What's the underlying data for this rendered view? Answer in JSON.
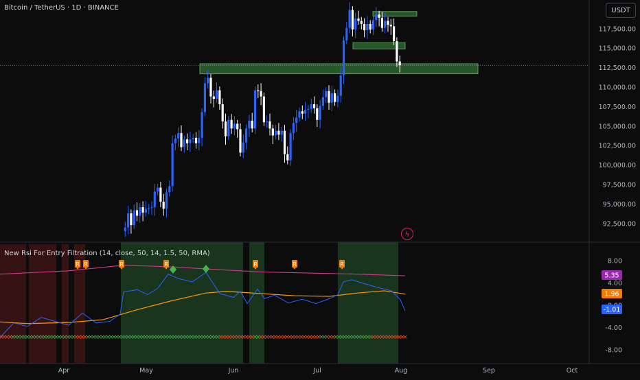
{
  "header": {
    "symbol_title": "Bitcoin / TetherUS · 1D · BINANCE",
    "currency": "USDT"
  },
  "indicator": {
    "title": "New Rsi For Entry Filtration (14, close, 50, 14, 1.5, 50, RMA)",
    "values": {
      "purple": "5.35",
      "orange": "1.96",
      "blue": "-1.01"
    },
    "colors": {
      "purple": "#9c27b0",
      "orange": "#f57c00",
      "blue": "#2962ff",
      "line_blue": "#2962ff",
      "line_orange": "#ff9800",
      "line_pink": "#d1368f"
    },
    "r_marker_label": "R",
    "axis_ticks": [
      "8.00",
      "4.00",
      "0.00",
      "-4.00",
      "-8.00"
    ]
  },
  "price_axis": {
    "ticks": [
      "117,500.00",
      "115,000.00",
      "112,500.00",
      "110,000.00",
      "107,500.00",
      "105,000.00",
      "102,500.00",
      "100,000.00",
      "97,500.00",
      "95,000.00",
      "92,500.00"
    ],
    "current_price_line": 112800
  },
  "time_axis": {
    "labels": [
      "Apr",
      "May",
      "Jun",
      "Jul",
      "Aug",
      "Sep",
      "Oct"
    ]
  },
  "colors": {
    "up_candle": "#2962ff",
    "down_candle": "#ffffff",
    "zone_fill": "#4caf50",
    "bull_bg": "#1b3a1f",
    "bear_bg": "#3a1414",
    "strip_green": "#4caf50",
    "strip_red": "#f4511e"
  },
  "chart_data": {
    "type": "candlestick",
    "symbol": "Bitcoin / TetherUS",
    "timeframe": "1D",
    "exchange": "BINANCE",
    "y_range": [
      90200,
      120300
    ],
    "x_months": [
      "Apr",
      "May",
      "Jun",
      "Jul",
      "Aug",
      "Sep",
      "Oct"
    ],
    "close_path": [
      [
        0,
        91500
      ],
      [
        1,
        92000
      ],
      [
        2,
        93800
      ],
      [
        3,
        92300
      ],
      [
        4,
        94200
      ],
      [
        5,
        93500
      ],
      [
        6,
        94600
      ],
      [
        7,
        93900
      ],
      [
        8,
        94400
      ],
      [
        9,
        94500
      ],
      [
        10,
        94600
      ],
      [
        11,
        96600
      ],
      [
        12,
        97100
      ],
      [
        13,
        95300
      ],
      [
        14,
        94400
      ],
      [
        15,
        96500
      ],
      [
        16,
        97300
      ],
      [
        17,
        102800
      ],
      [
        18,
        103400
      ],
      [
        19,
        104100
      ],
      [
        20,
        102300
      ],
      [
        21,
        103300
      ],
      [
        22,
        102800
      ],
      [
        23,
        103300
      ],
      [
        24,
        103500
      ],
      [
        25,
        102800
      ],
      [
        26,
        103500
      ],
      [
        27,
        106800
      ],
      [
        28,
        110500
      ],
      [
        29,
        111200
      ],
      [
        30,
        108800
      ],
      [
        31,
        108500
      ],
      [
        32,
        109600
      ],
      [
        33,
        107800
      ],
      [
        34,
        105600
      ],
      [
        35,
        103700
      ],
      [
        36,
        105800
      ],
      [
        37,
        104700
      ],
      [
        38,
        105300
      ],
      [
        39,
        104600
      ],
      [
        40,
        101600
      ],
      [
        41,
        102900
      ],
      [
        42,
        104700
      ],
      [
        43,
        105700
      ],
      [
        44,
        104700
      ],
      [
        45,
        109600
      ],
      [
        46,
        109500
      ],
      [
        47,
        108800
      ],
      [
        48,
        105500
      ],
      [
        49,
        105600
      ],
      [
        50,
        104700
      ],
      [
        51,
        103800
      ],
      [
        52,
        104400
      ],
      [
        53,
        103900
      ],
      [
        54,
        104400
      ],
      [
        55,
        101400
      ],
      [
        56,
        100600
      ],
      [
        57,
        104100
      ],
      [
        58,
        105400
      ],
      [
        59,
        106100
      ],
      [
        60,
        106900
      ],
      [
        61,
        106600
      ],
      [
        62,
        107100
      ],
      [
        63,
        107200
      ],
      [
        64,
        107800
      ],
      [
        65,
        107300
      ],
      [
        66,
        105800
      ],
      [
        67,
        107600
      ],
      [
        68,
        108700
      ],
      [
        69,
        109500
      ],
      [
        70,
        108000
      ],
      [
        71,
        109200
      ],
      [
        72,
        108100
      ],
      [
        73,
        108900
      ],
      [
        74,
        111500
      ],
      [
        75,
        116000
      ],
      [
        76,
        117600
      ],
      [
        77,
        119900
      ],
      [
        78,
        117400
      ],
      [
        79,
        118800
      ],
      [
        80,
        118500
      ],
      [
        81,
        118100
      ],
      [
        82,
        117300
      ],
      [
        83,
        118100
      ],
      [
        84,
        117400
      ],
      [
        85,
        118600
      ],
      [
        86,
        119300
      ],
      [
        87,
        118900
      ],
      [
        88,
        117600
      ],
      [
        89,
        118500
      ],
      [
        90,
        118000
      ],
      [
        91,
        117800
      ],
      [
        92,
        115900
      ],
      [
        93,
        113300
      ],
      [
        94,
        112800
      ]
    ],
    "horizontal_zones": [
      {
        "label": "zone-top",
        "y_low": 119100,
        "y_high": 119700
      },
      {
        "label": "zone-mid",
        "y_low": 114900,
        "y_high": 115700
      },
      {
        "label": "zone-support",
        "y_low": 111700,
        "y_high": 113000
      }
    ],
    "indicator_axis_range": [
      -10,
      10
    ]
  }
}
